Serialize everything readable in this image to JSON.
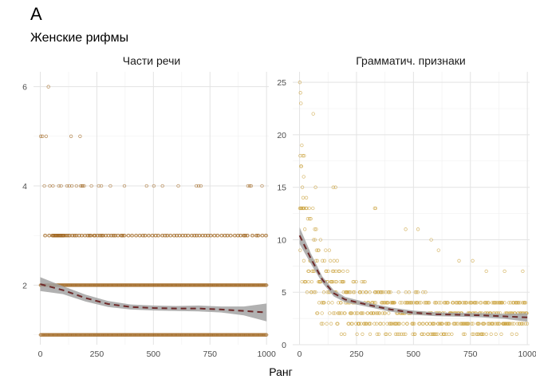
{
  "figure": {
    "tag": "A",
    "subtitle": "Женские рифмы",
    "xlabel": "Ранг"
  },
  "chart_data": [
    {
      "type": "scatter",
      "title": "Части речи",
      "xlabel": "Ранг",
      "ylabel": "",
      "xlim": [
        -30,
        1010
      ],
      "ylim": [
        0.8,
        6.3
      ],
      "x_ticks": [
        "0",
        "250",
        "500",
        "750",
        "1000"
      ],
      "y_ticks": [
        "2",
        "4",
        "6"
      ],
      "grid": true,
      "point_color": "#a0661f",
      "points_note": "one point per rank 1–1000; outliers listed explicitly",
      "points": {
        "y1_x_range": [
          1,
          1000
        ],
        "y2_x_range": [
          1,
          1000
        ],
        "y3_x": [
          20,
          38,
          52,
          56,
          60,
          64,
          68,
          72,
          76,
          80,
          84,
          88,
          92,
          96,
          100,
          104,
          112,
          120,
          128,
          140,
          150,
          158,
          170,
          182,
          196,
          208,
          216,
          222,
          236,
          240,
          252,
          262,
          270,
          276,
          288,
          300,
          312,
          322,
          330,
          342,
          356,
          362,
          370,
          388,
          404,
          422,
          438,
          452,
          462,
          478,
          494,
          508,
          520,
          538,
          550,
          560,
          574,
          590,
          602,
          614,
          628,
          640,
          652,
          668,
          680,
          690,
          702,
          716,
          728,
          740,
          752,
          768,
          782,
          800,
          814,
          826,
          840,
          858,
          872,
          884,
          898,
          904,
          914,
          936,
          954,
          962,
          980,
          996
        ],
        "y4_x": [
          18,
          42,
          56,
          82,
          92,
          118,
          128,
          140,
          160,
          178,
          184,
          188,
          194,
          226,
          258,
          270,
          310,
          372,
          470,
          502,
          540,
          610,
          690,
          700,
          710,
          918,
          926,
          932,
          980
        ],
        "y5_x": [
          2,
          10,
          26,
          136,
          176
        ],
        "y6_x": [
          36
        ]
      },
      "smooth": {
        "x": [
          0,
          100,
          200,
          300,
          400,
          500,
          600,
          700,
          800,
          900,
          1000
        ],
        "y": [
          2.02,
          1.9,
          1.74,
          1.62,
          1.56,
          1.54,
          1.53,
          1.53,
          1.51,
          1.48,
          1.45
        ],
        "ci_low": [
          1.88,
          1.82,
          1.67,
          1.56,
          1.51,
          1.49,
          1.48,
          1.47,
          1.45,
          1.39,
          1.27
        ],
        "ci_high": [
          2.16,
          1.98,
          1.81,
          1.68,
          1.61,
          1.59,
          1.58,
          1.59,
          1.57,
          1.57,
          1.63
        ],
        "line_color": "#6e2a2a",
        "band_color": "#a3a3a3"
      }
    },
    {
      "type": "scatter",
      "title": "Грамматич. признаки",
      "xlabel": "Ранг",
      "ylabel": "",
      "xlim": [
        -30,
        1010
      ],
      "ylim": [
        0,
        26
      ],
      "x_ticks": [
        "0",
        "250",
        "500",
        "750",
        "1000"
      ],
      "y_ticks": [
        "0",
        "5",
        "10",
        "15",
        "20",
        "25"
      ],
      "grid": true,
      "point_color": "#c9a03a",
      "outliers": [
        {
          "x": 1,
          "y": 25
        },
        {
          "x": 4,
          "y": 24
        },
        {
          "x": 6,
          "y": 23
        },
        {
          "x": 10,
          "y": 19
        },
        {
          "x": 14,
          "y": 18
        },
        {
          "x": 20,
          "y": 18
        },
        {
          "x": 8,
          "y": 17
        },
        {
          "x": 3,
          "y": 18
        },
        {
          "x": 60,
          "y": 22
        },
        {
          "x": 18,
          "y": 16
        },
        {
          "x": 70,
          "y": 15
        },
        {
          "x": 148,
          "y": 15
        },
        {
          "x": 158,
          "y": 15
        },
        {
          "x": 330,
          "y": 13
        },
        {
          "x": 334,
          "y": 13
        },
        {
          "x": 466,
          "y": 11
        },
        {
          "x": 520,
          "y": 11
        },
        {
          "x": 578,
          "y": 10
        },
        {
          "x": 610,
          "y": 9
        },
        {
          "x": 700,
          "y": 8
        },
        {
          "x": 760,
          "y": 8
        },
        {
          "x": 820,
          "y": 7
        },
        {
          "x": 900,
          "y": 7
        },
        {
          "x": 980,
          "y": 7
        }
      ],
      "smooth": {
        "x": [
          0,
          50,
          100,
          150,
          200,
          300,
          400,
          500,
          600,
          700,
          800,
          900,
          1000
        ],
        "y": [
          10.4,
          8.2,
          6.2,
          4.9,
          4.3,
          3.8,
          3.35,
          3.05,
          2.9,
          2.85,
          2.8,
          2.7,
          2.6
        ],
        "ci_low": [
          9.6,
          7.7,
          5.9,
          4.6,
          4.05,
          3.6,
          3.15,
          2.85,
          2.72,
          2.67,
          2.6,
          2.46,
          2.2
        ],
        "ci_high": [
          11.2,
          8.7,
          6.5,
          5.2,
          4.55,
          4.0,
          3.55,
          3.25,
          3.08,
          3.03,
          3.0,
          2.94,
          3.0
        ],
        "line_color": "#6e2a2a",
        "band_color": "#a3a3a3"
      }
    }
  ]
}
